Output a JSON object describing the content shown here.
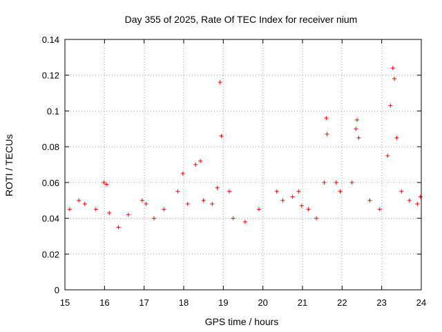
{
  "chart_data": {
    "type": "scatter",
    "title": "Day 355 of 2025, Rate Of TEC Index for receiver nium",
    "xlabel": "GPS time / hours",
    "ylabel": "ROTI / TECUs",
    "xlim": [
      15,
      24
    ],
    "ylim": [
      0,
      0.14
    ],
    "xticks": [
      "15",
      "16",
      "17",
      "18",
      "19",
      "20",
      "21",
      "22",
      "23",
      "24"
    ],
    "xtick_values": [
      15,
      16,
      17,
      18,
      19,
      20,
      21,
      22,
      23,
      24
    ],
    "yticks": [
      "0",
      "0.02",
      "0.04",
      "0.06",
      "0.08",
      "0.1",
      "0.12",
      "0.14"
    ],
    "ytick_values": [
      0,
      0.02,
      0.04,
      0.06,
      0.08,
      0.1,
      0.12,
      0.14
    ],
    "grid": true,
    "marker": "plus",
    "series": [
      {
        "name": "ROTI",
        "color": "#ff0000",
        "x": [
          15.12,
          15.35,
          15.5,
          15.78,
          15.98,
          16.05,
          16.12,
          16.35,
          16.6,
          16.95,
          17.05,
          17.25,
          17.5,
          17.85,
          17.98,
          18.1,
          18.3,
          18.42,
          18.5,
          18.72,
          18.85,
          18.92,
          18.95,
          19.15,
          19.25,
          19.55,
          19.9,
          20.35,
          20.5,
          20.75,
          20.9,
          20.98,
          21.15,
          21.35,
          21.55,
          21.6,
          21.62,
          21.85,
          21.95,
          22.25,
          22.35,
          22.38,
          22.42,
          22.7,
          22.95,
          23.15,
          23.22,
          23.28,
          23.32,
          23.38,
          23.5,
          23.7,
          23.9,
          23.98
        ],
        "y": [
          0.045,
          0.05,
          0.048,
          0.045,
          0.06,
          0.059,
          0.043,
          0.035,
          0.042,
          0.05,
          0.048,
          0.04,
          0.045,
          0.055,
          0.065,
          0.048,
          0.07,
          0.072,
          0.05,
          0.048,
          0.057,
          0.116,
          0.086,
          0.055,
          0.04,
          0.038,
          0.045,
          0.055,
          0.05,
          0.052,
          0.055,
          0.047,
          0.045,
          0.04,
          0.06,
          0.096,
          0.087,
          0.06,
          0.055,
          0.06,
          0.09,
          0.095,
          0.085,
          0.05,
          0.045,
          0.075,
          0.103,
          0.124,
          0.118,
          0.085,
          0.055,
          0.05,
          0.048,
          0.052
        ]
      }
    ]
  }
}
